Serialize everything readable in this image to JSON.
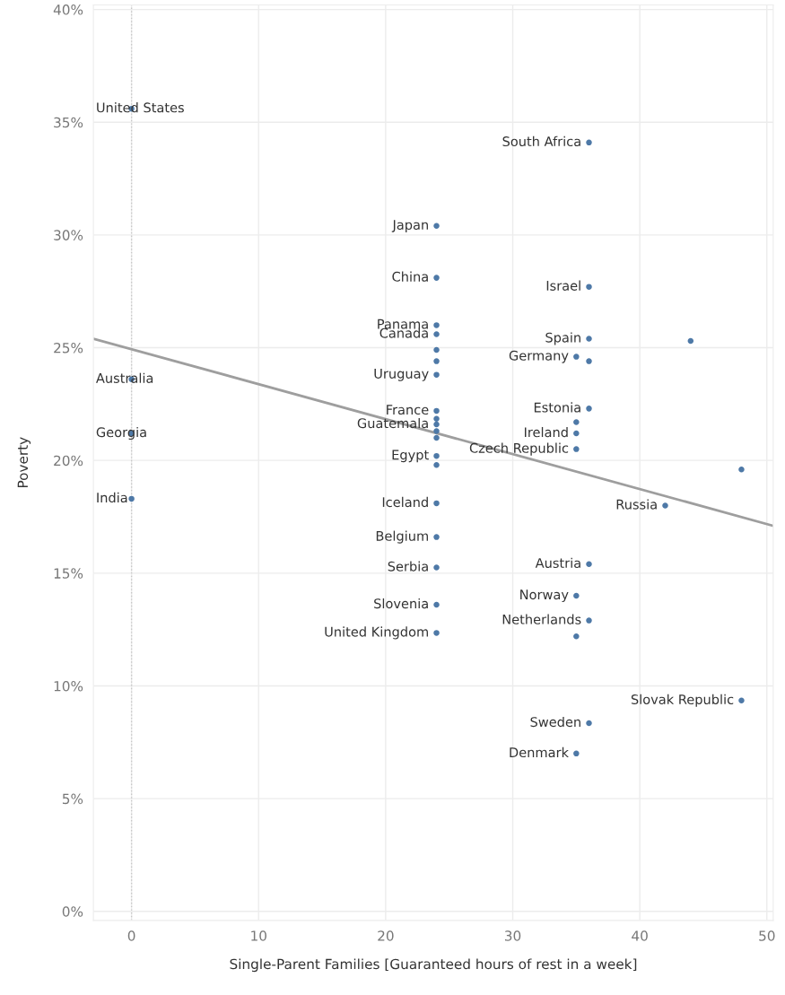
{
  "chart_data": {
    "type": "scatter",
    "xlabel": "Single-Parent Families [Guaranteed hours of rest in a week]",
    "ylabel": "Poverty",
    "xlim": [
      -3,
      50.5
    ],
    "xticks": [
      0,
      10,
      20,
      30,
      40,
      50
    ],
    "ylim": [
      -0.4,
      40.2
    ],
    "yticks": [
      {
        "value": 0,
        "label": "0%"
      },
      {
        "value": 5,
        "label": "5%"
      },
      {
        "value": 10,
        "label": "10%"
      },
      {
        "value": 15,
        "label": "15%"
      },
      {
        "value": 20,
        "label": "20%"
      },
      {
        "value": 25,
        "label": "25%"
      },
      {
        "value": 30,
        "label": "30%"
      },
      {
        "value": 35,
        "label": "35%"
      },
      {
        "value": 40,
        "label": "40%"
      }
    ],
    "grid": true,
    "marker": "circle",
    "series": [
      {
        "color": "#4e79a7",
        "x": [
          0,
          0,
          0,
          0,
          36,
          24,
          24,
          36,
          24,
          24,
          24,
          24,
          24,
          36,
          35,
          36,
          24,
          24,
          24,
          24,
          24,
          36,
          35,
          35,
          35,
          24,
          24,
          24,
          24,
          24,
          36,
          35,
          24,
          24,
          36,
          35,
          48,
          36,
          35,
          42,
          44,
          48
        ],
        "values": [
          35.6,
          23.6,
          21.2,
          18.3,
          34.1,
          30.4,
          28.1,
          27.7,
          26.0,
          25.6,
          24.9,
          24.4,
          23.8,
          25.4,
          24.6,
          24.4,
          22.2,
          21.85,
          21.6,
          21.3,
          21.0,
          22.3,
          21.7,
          21.2,
          20.5,
          20.2,
          19.8,
          18.1,
          16.6,
          15.25,
          15.4,
          14.0,
          13.6,
          12.35,
          12.9,
          12.2,
          9.35,
          8.35,
          7.0,
          18.0,
          25.3,
          19.6
        ]
      },
      {
        "type": "line",
        "marker": "none",
        "color": "#9e9e9e",
        "x": [
          -3,
          50.5
        ],
        "values": [
          25.4,
          17.1
        ]
      }
    ],
    "ref_lines": [
      {
        "axis": "x",
        "value": 0,
        "color": "#c8c8c8",
        "line_style": "dotted"
      }
    ],
    "annotations": [
      {
        "text": "United States",
        "x": 0,
        "y": 35.6
      },
      {
        "text": "Australia",
        "x": 0,
        "y": 23.6
      },
      {
        "text": "Georgia",
        "x": 0,
        "y": 21.2
      },
      {
        "text": "India",
        "x": 0,
        "y": 18.3
      },
      {
        "text": "South Africa",
        "x": 36,
        "y": 34.1
      },
      {
        "text": "Japan",
        "x": 24,
        "y": 30.4
      },
      {
        "text": "China",
        "x": 24,
        "y": 28.1
      },
      {
        "text": "Israel",
        "x": 36,
        "y": 27.7
      },
      {
        "text": "Panama",
        "x": 24,
        "y": 26.0
      },
      {
        "text": "Canada",
        "x": 24,
        "y": 25.6
      },
      {
        "text": "Uruguay",
        "x": 24,
        "y": 23.8
      },
      {
        "text": "Spain",
        "x": 36,
        "y": 25.4
      },
      {
        "text": "Germany",
        "x": 35,
        "y": 24.6
      },
      {
        "text": "France",
        "x": 24,
        "y": 22.2
      },
      {
        "text": "Guatemala",
        "x": 24,
        "y": 21.6
      },
      {
        "text": "Estonia",
        "x": 36,
        "y": 22.3
      },
      {
        "text": "Ireland",
        "x": 35,
        "y": 21.2
      },
      {
        "text": "Czech Republic",
        "x": 35,
        "y": 20.5
      },
      {
        "text": "Egypt",
        "x": 24,
        "y": 20.2
      },
      {
        "text": "Iceland",
        "x": 24,
        "y": 18.1
      },
      {
        "text": "Belgium",
        "x": 24,
        "y": 16.6
      },
      {
        "text": "Serbia",
        "x": 24,
        "y": 15.25
      },
      {
        "text": "Austria",
        "x": 36,
        "y": 15.4
      },
      {
        "text": "Norway",
        "x": 35,
        "y": 14.0
      },
      {
        "text": "Slovenia",
        "x": 24,
        "y": 13.6
      },
      {
        "text": "United Kingdom",
        "x": 24,
        "y": 12.35
      },
      {
        "text": "Netherlands",
        "x": 36,
        "y": 12.9
      },
      {
        "text": "Slovak Republic",
        "x": 48,
        "y": 9.35
      },
      {
        "text": "Sweden",
        "x": 36,
        "y": 8.35
      },
      {
        "text": "Denmark",
        "x": 35,
        "y": 7.0
      },
      {
        "text": "Russia",
        "x": 42,
        "y": 18.0
      }
    ]
  }
}
